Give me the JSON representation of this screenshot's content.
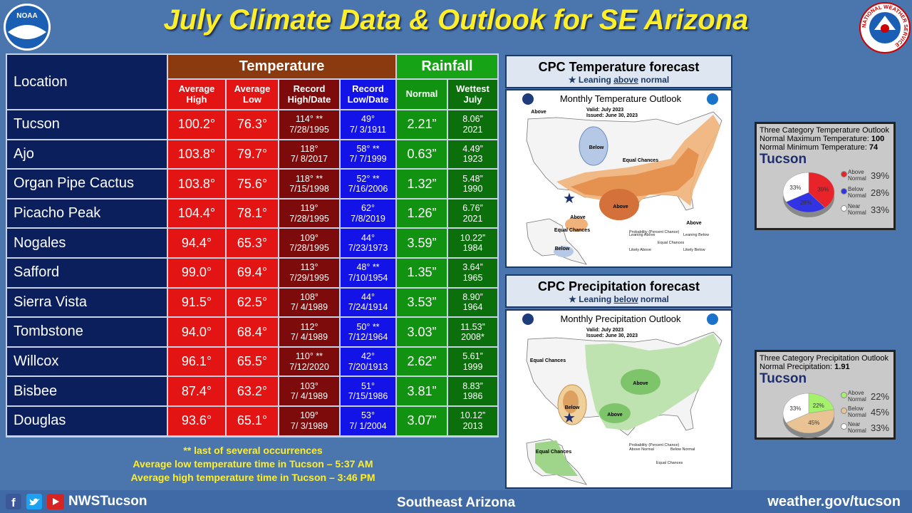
{
  "header": {
    "title": "July Climate Data & Outlook for SE Arizona",
    "left_logo": "NOAA",
    "right_logo": "NATIONAL WEATHER SERVICE"
  },
  "table": {
    "location_header": "Location",
    "group_headers": [
      "Temperature",
      "Rainfall"
    ],
    "column_headers": [
      "Average High",
      "Average Low",
      "Record High/Date",
      "Record Low/Date",
      "Normal",
      "Wettest July"
    ],
    "rows": [
      [
        "Tucson",
        "100.2°",
        "76.3°",
        "114° **",
        "7/28/1995",
        "49°",
        "7/ 3/1911",
        "2.21”",
        "8.06”",
        "2021"
      ],
      [
        "Ajo",
        "103.8°",
        "79.7°",
        "118°",
        "7/ 8/2017",
        "58° **",
        "7/ 7/1999",
        "0.63”",
        "4.49”",
        "1923"
      ],
      [
        "Organ Pipe Cactus",
        "103.8°",
        "75.6°",
        "118° **",
        "7/15/1998",
        "52° **",
        "7/16/2006",
        "1.32”",
        "5.48”",
        "1990"
      ],
      [
        "Picacho Peak",
        "104.4°",
        "78.1°",
        "119°",
        "7/28/1995",
        "62°",
        "7/8/2019",
        "1.26”",
        "6.76”",
        "2021"
      ],
      [
        "Nogales",
        "94.4°",
        "65.3°",
        "109°",
        "7/28/1995",
        "44°",
        "7/23/1973",
        "3.59”",
        "10.22”",
        "1984"
      ],
      [
        "Safford",
        "99.0°",
        "69.4°",
        "113°",
        "7/29/1995",
        "48° **",
        "7/10/1954",
        "1.35”",
        "3.64”",
        "1965"
      ],
      [
        "Sierra Vista",
        "91.5°",
        "62.5°",
        "108°",
        "7/ 4/1989",
        "44°",
        "7/24/1914",
        "3.53”",
        "8.90”",
        "1964"
      ],
      [
        "Tombstone",
        "94.0°",
        "68.4°",
        "112°",
        "7/ 4/1989",
        "50° **",
        "7/12/1964",
        "3.03”",
        "11.53”",
        "2008*"
      ],
      [
        "Willcox",
        "96.1°",
        "65.5°",
        "110° **",
        "7/12/2020",
        "42°",
        "7/20/1913",
        "2.62”",
        "5.61”",
        "1999"
      ],
      [
        "Bisbee",
        "87.4°",
        "63.2°",
        "103°",
        "7/ 4/1989",
        "51°",
        "7/15/1986",
        "3.81”",
        "8.83”",
        "1986"
      ],
      [
        "Douglas",
        "93.6°",
        "65.1°",
        "109°",
        "7/ 3/1989",
        "53°",
        "7/ 1/2004",
        "3.07”",
        "10.12”",
        "2013"
      ]
    ]
  },
  "notes": [
    "** last of several occurrences",
    "Average low temperature time in Tucson – 5:37 AM",
    "Average high temperature time in Tucson – 3:46 PM"
  ],
  "temp_forecast": {
    "title": "CPC Temperature forecast",
    "sub_before": "Leaning ",
    "sub_word": "above",
    "sub_after": " normal",
    "map_title": "Monthly Temperature Outlook",
    "valid": "Valid:  July 2023",
    "issued": "Issued:  June 30, 2023",
    "labels": [
      "Above",
      "Below",
      "Equal Chances",
      "Above",
      "Above",
      "Equal Chances",
      "Below",
      "Above"
    ],
    "legend": [
      "Probability (Percent Chance)",
      "Leaning Above",
      "Leaning Below",
      "Likely Above",
      "Likely Below",
      "Equal Chances"
    ]
  },
  "precip_forecast": {
    "title": "CPC Precipitation forecast",
    "sub_before": "Leaning ",
    "sub_word": "below",
    "sub_after": " normal",
    "map_title": "Monthly Precipitation Outlook",
    "valid": "Valid:  July 2023",
    "issued": "Issued:  June 30, 2023",
    "labels": [
      "Equal Chances",
      "Above",
      "Below",
      "Above",
      "Equal Chances"
    ],
    "legend": [
      "Probability (Percent Chance)",
      "Above Normal",
      "Below Normal",
      "Equal Chances"
    ]
  },
  "chart_data": [
    {
      "type": "pie",
      "title": "Three Category Temperature Outlook",
      "normals": [
        {
          "label": "Normal Maximum Temperature: ",
          "value": "100"
        },
        {
          "label": "Normal Minimum Temperature: ",
          "value": "74"
        }
      ],
      "location": "Tucson",
      "categories": [
        "Above Normal",
        "Below Normal",
        "Near Normal"
      ],
      "values": [
        39,
        28,
        33
      ],
      "value_labels": [
        "39%",
        "28%",
        "33%"
      ],
      "colors": [
        "#e8232a",
        "#3333e6",
        "#ffffff"
      ]
    },
    {
      "type": "pie",
      "title": "Three Category Precipitation Outlook",
      "normals": [
        {
          "label": "Normal Precipitation: ",
          "value": "1.91"
        }
      ],
      "location": "Tucson",
      "categories": [
        "Above Normal",
        "Below Normal",
        "Near Normal"
      ],
      "values": [
        22,
        45,
        33
      ],
      "value_labels": [
        "22%",
        "45%",
        "33%"
      ],
      "colors": [
        "#a4f26c",
        "#e9c393",
        "#ffffff"
      ]
    }
  ],
  "footer": {
    "handle": "NWSTucson",
    "region": "Southeast Arizona",
    "url": "weather.gov/tucson"
  }
}
